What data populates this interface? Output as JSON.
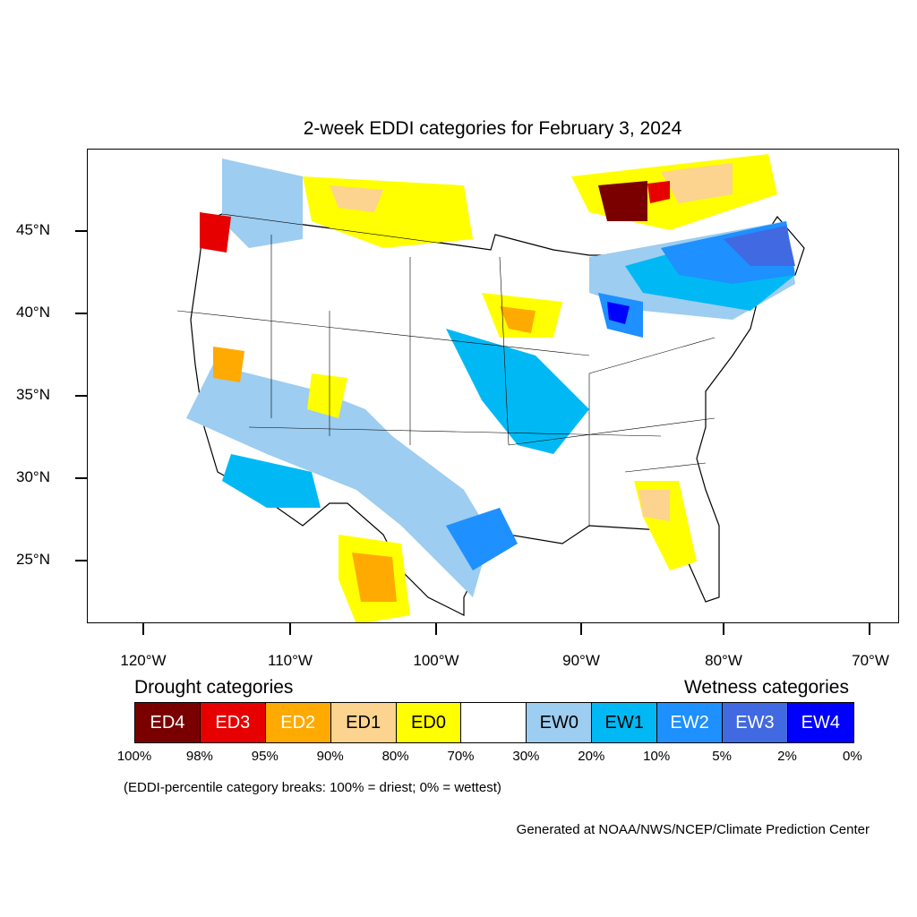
{
  "title": "2-week EDDI categories for February 3, 2024",
  "axes": {
    "lat_labels": [
      "45°N",
      "40°N",
      "35°N",
      "30°N",
      "25°N"
    ],
    "lon_labels": [
      "120°W",
      "110°W",
      "100°W",
      "90°W",
      "80°W",
      "70°W"
    ]
  },
  "legend": {
    "drought_heading": "Drought categories",
    "wetness_heading": "Wetness categories",
    "categories": [
      {
        "label": "ED4",
        "color": "#7a0000",
        "text_color": "#ffffff"
      },
      {
        "label": "ED3",
        "color": "#e60000",
        "text_color": "#ffffff"
      },
      {
        "label": "ED2",
        "color": "#ffaa00",
        "text_color": "#ffffff"
      },
      {
        "label": "ED1",
        "color": "#fcd38f",
        "text_color": "#000000"
      },
      {
        "label": "ED0",
        "color": "#ffff00",
        "text_color": "#000000"
      },
      {
        "label": "",
        "color": "#ffffff",
        "text_color": "#000000"
      },
      {
        "label": "EW0",
        "color": "#9dcdf0",
        "text_color": "#000000"
      },
      {
        "label": "EW1",
        "color": "#00b9f4",
        "text_color": "#000000"
      },
      {
        "label": "EW2",
        "color": "#1e90ff",
        "text_color": "#ffffff"
      },
      {
        "label": "EW3",
        "color": "#4169e1",
        "text_color": "#ffffff"
      },
      {
        "label": "EW4",
        "color": "#0000ff",
        "text_color": "#ffffff"
      }
    ],
    "percentiles": [
      "100%",
      "98%",
      "95%",
      "90%",
      "80%",
      "70%",
      "30%",
      "20%",
      "10%",
      "5%",
      "2%",
      "0%"
    ]
  },
  "note": "(EDDI-percentile category breaks: 100% = driest; 0% = wettest)",
  "credit": "Generated at NOAA/NWS/NCEP/Climate Prediction Center"
}
